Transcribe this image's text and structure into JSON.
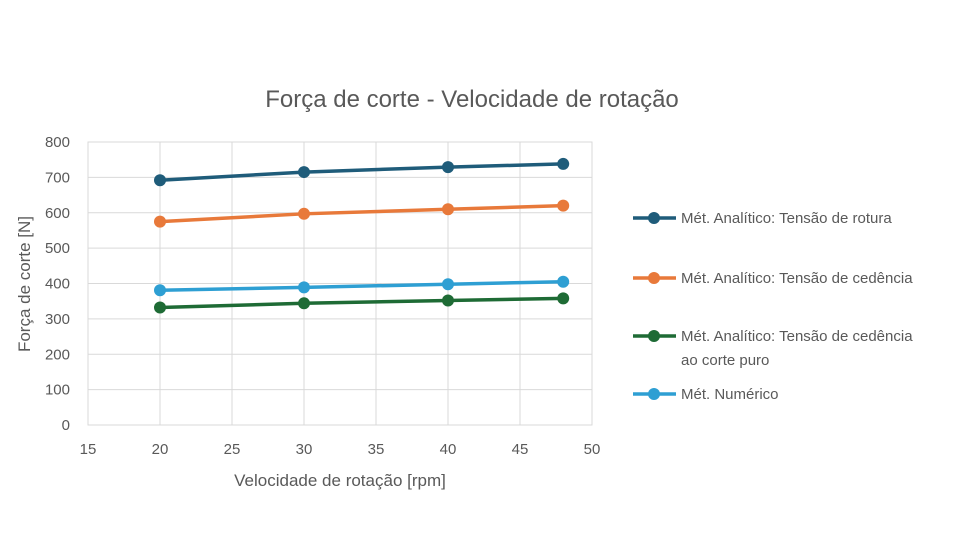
{
  "chart_data": {
    "type": "line",
    "title": "Força de corte - Velocidade de rotação",
    "xlabel": "Velocidade de rotação [rpm]",
    "ylabel": "Força de corte [N]",
    "xlim": [
      15,
      50
    ],
    "ylim": [
      0,
      800
    ],
    "xticks": [
      15,
      20,
      25,
      30,
      35,
      40,
      45,
      50
    ],
    "yticks": [
      0,
      100,
      200,
      300,
      400,
      500,
      600,
      700,
      800
    ],
    "grid": true,
    "legend_position": "right",
    "x": [
      20,
      30,
      40,
      48
    ],
    "series": [
      {
        "name": "Mét. Analítico: Tensão de rotura",
        "legend_lines": [
          "Mét. Analítico: Tensão de rotura"
        ],
        "color": "#1F5C7A",
        "values": [
          692,
          715,
          729,
          738
        ]
      },
      {
        "name": "Mét. Analítico: Tensão de cedência",
        "legend_lines": [
          "Mét. Analítico: Tensão de cedência"
        ],
        "color": "#E8793A",
        "values": [
          575,
          597,
          610,
          620
        ]
      },
      {
        "name": "Mét. Analítico: Tensão de cedência ao corte puro",
        "legend_lines": [
          "Mét. Analítico: Tensão de cedência",
          "ao corte puro"
        ],
        "color": "#1E6B35",
        "values": [
          332,
          344,
          352,
          358
        ]
      },
      {
        "name": "Mét. Numérico",
        "legend_lines": [
          "Mét. Numérico"
        ],
        "color": "#2E9FD3",
        "values": [
          381,
          389,
          398,
          405
        ]
      }
    ]
  }
}
